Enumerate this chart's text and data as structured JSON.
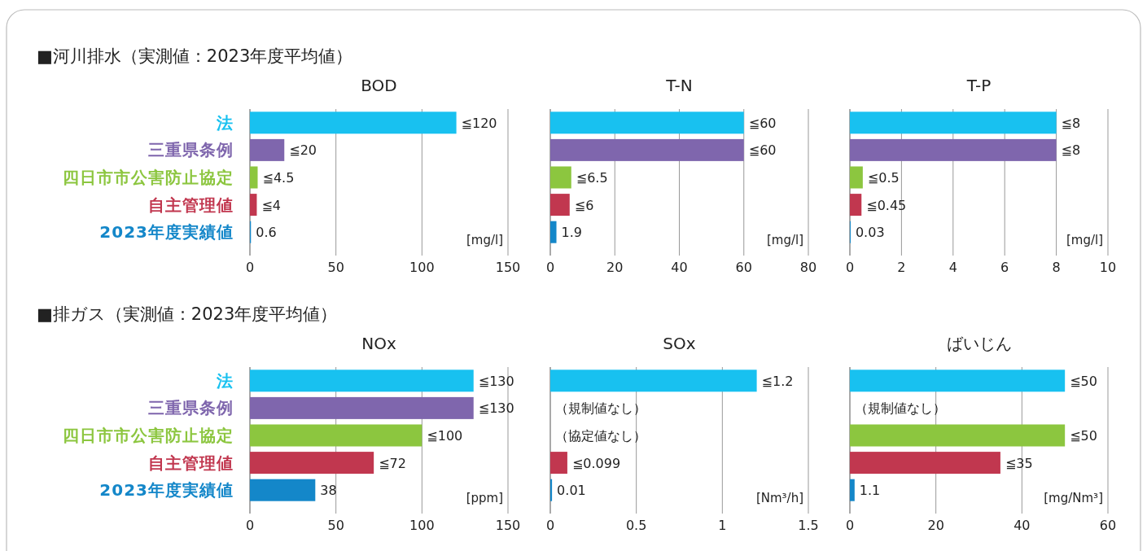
{
  "chart_data": [
    {
      "type": "bar",
      "orientation": "horizontal",
      "subtitle": "■河川排水（実測値：2023年度平均値）",
      "title": "BOD",
      "categories": [
        "法",
        "三重県条例",
        "四日市市公害防止協定",
        "自主管理値",
        "2023年度実績値"
      ],
      "values": [
        120,
        20,
        4.5,
        4,
        0.6
      ],
      "colors": [
        "#18c1f0",
        "#7f66ad",
        "#8cc63f",
        "#c1374f",
        "#1487c9"
      ],
      "value_labels": [
        "≦120",
        "≦20",
        "≦4.5",
        "≦4",
        "0.6"
      ],
      "xlim": [
        0,
        150
      ],
      "xticks": [
        0,
        50,
        100,
        150
      ],
      "grid": "x",
      "annotations": [
        "[mg/l]"
      ]
    },
    {
      "type": "bar",
      "orientation": "horizontal",
      "title": "T-N",
      "categories": [
        null,
        null,
        null,
        null,
        null
      ],
      "values": [
        60,
        60,
        6.5,
        6,
        1.9
      ],
      "colors": [
        "#18c1f0",
        "#7f66ad",
        "#8cc63f",
        "#c1374f",
        "#1487c9"
      ],
      "value_labels": [
        "≦60",
        "≦60",
        "≦6.5",
        "≦6",
        "1.9"
      ],
      "xlim": [
        0,
        80
      ],
      "xticks": [
        0,
        20,
        40,
        60,
        80
      ],
      "grid": "x",
      "annotations": [
        "[mg/l]"
      ]
    },
    {
      "type": "bar",
      "orientation": "horizontal",
      "title": "T-P",
      "categories": [
        null,
        null,
        null,
        null,
        null
      ],
      "values": [
        8,
        8,
        0.5,
        0.45,
        0.03
      ],
      "colors": [
        "#18c1f0",
        "#7f66ad",
        "#8cc63f",
        "#c1374f",
        "#1487c9"
      ],
      "value_labels": [
        "≦8",
        "≦8",
        "≦0.5",
        "≦0.45",
        "0.03"
      ],
      "xlim": [
        0,
        10
      ],
      "xticks": [
        0,
        2,
        4,
        6,
        8,
        10
      ],
      "grid": "x",
      "annotations": [
        "[mg/l]"
      ]
    },
    {
      "type": "bar",
      "orientation": "horizontal",
      "subtitle": "■排ガス（実測値：2023年度平均値）",
      "title": "NOx",
      "categories": [
        "法",
        "三重県条例",
        "四日市市公害防止協定",
        "自主管理値",
        "2023年度実績値"
      ],
      "values": [
        130,
        130,
        100,
        72,
        38
      ],
      "colors": [
        "#18c1f0",
        "#7f66ad",
        "#8cc63f",
        "#c1374f",
        "#1487c9"
      ],
      "value_labels": [
        "≦130",
        "≦130",
        "≦100",
        "≦72",
        "38"
      ],
      "xlim": [
        0,
        150
      ],
      "xticks": [
        0,
        50,
        100,
        150
      ],
      "grid": "x",
      "annotations": [
        "[ppm]"
      ]
    },
    {
      "type": "bar",
      "orientation": "horizontal",
      "title": "SOx",
      "categories": [
        null,
        null,
        null,
        null,
        null
      ],
      "values": [
        1.2,
        null,
        null,
        0.099,
        0.01
      ],
      "colors": [
        "#18c1f0",
        null,
        null,
        "#c1374f",
        "#1487c9"
      ],
      "value_labels": [
        "≦1.2",
        "（規制値なし）",
        "（協定値なし）",
        "≦0.099",
        "0.01"
      ],
      "xlim": [
        0,
        1.5
      ],
      "xticks": [
        0,
        0.5,
        1,
        1.5
      ],
      "grid": "x",
      "annotations": [
        "[Nm³/h]"
      ]
    },
    {
      "type": "bar",
      "orientation": "horizontal",
      "title": "ばいじん",
      "categories": [
        null,
        null,
        null,
        null,
        null
      ],
      "values": [
        50,
        null,
        50,
        35,
        1.1
      ],
      "colors": [
        "#18c1f0",
        null,
        "#8cc63f",
        "#c1374f",
        "#1487c9"
      ],
      "value_labels": [
        "≦50",
        "（規制値なし）",
        "≦50",
        "≦35",
        "1.1"
      ],
      "xlim": [
        0,
        60
      ],
      "xticks": [
        0,
        20,
        40,
        60
      ],
      "grid": "x",
      "annotations": [
        "[mg/Nm³]"
      ]
    }
  ]
}
